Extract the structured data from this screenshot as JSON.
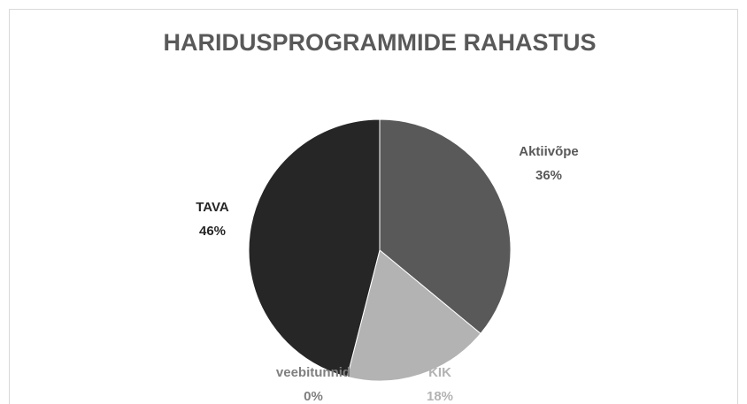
{
  "chart_data": {
    "type": "pie",
    "title": "HARIDUSPROGRAMMIDE RAHASTUS",
    "categories": [
      "Aktiivõpe",
      "KIK",
      "veebitunnid",
      "TAVA"
    ],
    "values": [
      36,
      18,
      0,
      46
    ],
    "value_labels": [
      "36%",
      "18%",
      "0%",
      "46%"
    ],
    "colors": [
      "#595959",
      "#b3b3b3",
      "#7f7f7f",
      "#262626"
    ]
  }
}
